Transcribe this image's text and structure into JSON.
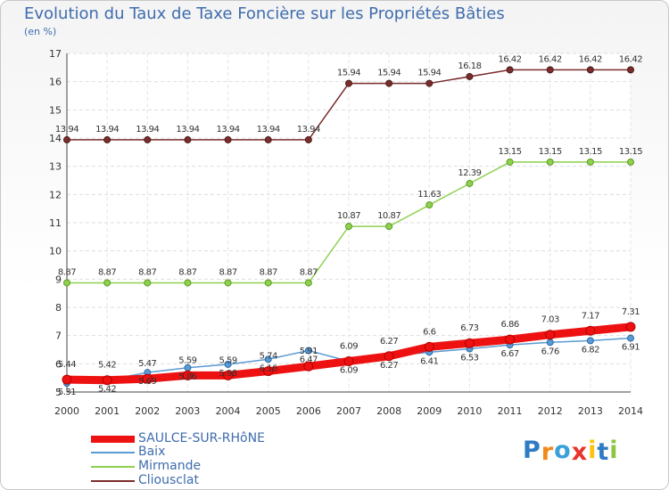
{
  "title": "Evolution du Taux de Taxe Foncière sur les Propriétés Bâties",
  "unit_label": "(en %)",
  "logo": {
    "letters": [
      "P",
      "r",
      "o",
      "x",
      "i",
      "t",
      "i"
    ],
    "colors": [
      "#2f7bc4",
      "#f08a1c",
      "#3aa0d8",
      "#e8342c",
      "#ffc20e",
      "#2f7bc4",
      "#8cc63e"
    ]
  },
  "chart_data": {
    "type": "line",
    "title": "Evolution du Taux de Taxe Foncière sur les Propriétés Bâties",
    "ylabel": "(en %)",
    "xlabel": "",
    "ylim": [
      5,
      17
    ],
    "yticks": [
      5,
      6,
      7,
      8,
      9,
      10,
      11,
      12,
      13,
      14,
      15,
      16,
      17
    ],
    "grid": true,
    "categories": [
      "2000",
      "2001",
      "2002",
      "2003",
      "2004",
      "2005",
      "2006",
      "2007",
      "2008",
      "2009",
      "2010",
      "2011",
      "2012",
      "2013",
      "2014"
    ],
    "series": [
      {
        "name": "Cliousclat",
        "color": "#7b2c2c",
        "values": [
          13.94,
          13.94,
          13.94,
          13.94,
          13.94,
          13.94,
          13.94,
          15.94,
          15.94,
          15.94,
          16.18,
          16.42,
          16.42,
          16.42,
          16.42
        ],
        "labels": [
          "13.94",
          "13.94",
          "13.94",
          "13.94",
          "13.94",
          "13.94",
          "13.94",
          "15.94",
          "15.94",
          "15.94",
          "16.18",
          "16.42",
          "16.42",
          "16.42",
          "16.42"
        ]
      },
      {
        "name": "Mirmande",
        "color": "#8fd14f",
        "values": [
          8.87,
          8.87,
          8.87,
          8.87,
          8.87,
          8.87,
          8.87,
          10.87,
          10.87,
          11.63,
          12.39,
          13.15,
          13.15,
          13.15,
          13.15
        ],
        "labels": [
          "8.87",
          "8.87",
          "8.87",
          "8.87",
          "8.87",
          "8.87",
          "8.87",
          "10.87",
          "10.87",
          "11.63",
          "12.39",
          "13.15",
          "13.15",
          "13.15",
          "13.15"
        ]
      },
      {
        "name": "Baix",
        "color": "#5a9bd4",
        "values": [
          5.31,
          5.42,
          5.69,
          5.86,
          5.98,
          6.16,
          6.47,
          6.09,
          6.27,
          6.41,
          6.53,
          6.67,
          6.76,
          6.82,
          6.91
        ],
        "labels": [
          "5.31",
          "5.42",
          "5.69",
          "5.86",
          "5.98",
          "6.16",
          "6.47",
          "6.09",
          "6.27",
          "6.41",
          "6.53",
          "6.67",
          "6.76",
          "6.82",
          "6.91"
        ]
      },
      {
        "name": "SAULCE-SUR-RHôNE",
        "color": "#ee1111",
        "values": [
          5.44,
          5.42,
          5.47,
          5.59,
          5.59,
          5.74,
          5.91,
          6.09,
          6.27,
          6.6,
          6.73,
          6.86,
          7.03,
          7.17,
          7.31
        ],
        "labels": [
          "5.44",
          "5.42",
          "5.47",
          "5.59",
          "5.59",
          "5.74",
          "5.91",
          "6.09",
          "6.27",
          "6.6",
          "6.73",
          "6.86",
          "7.03",
          "7.17",
          "7.31"
        ]
      }
    ],
    "legend": [
      "SAULCE-SUR-RHôNE",
      "Baix",
      "Mirmande",
      "Cliousclat"
    ]
  }
}
